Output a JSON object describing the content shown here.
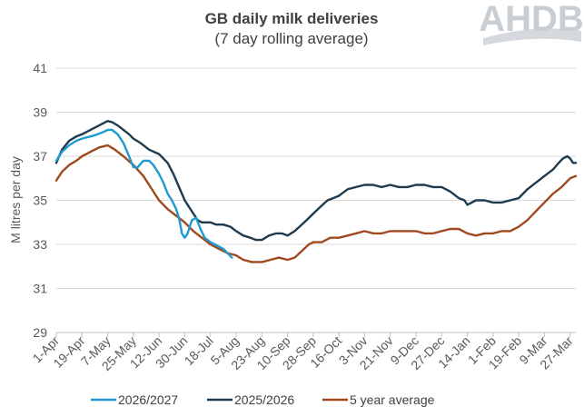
{
  "chart_data": {
    "type": "line",
    "title": "GB daily milk deliveries",
    "subtitle": "(7 day rolling average)",
    "ylabel": "M litres per day",
    "xlabel": "",
    "ylim": [
      29,
      41
    ],
    "yticks": [
      29,
      31,
      33,
      35,
      37,
      39,
      41
    ],
    "grid": "horizontal",
    "legend_position": "bottom",
    "logo_text": "AHDB",
    "categories": [
      "1-Apr",
      "19-Apr",
      "7-May",
      "25-May",
      "12-Jun",
      "30-Jun",
      "18-Jul",
      "5-Aug",
      "23-Aug",
      "10-Sep",
      "28-Sep",
      "16-Oct",
      "3-Nov",
      "21-Nov",
      "9-Dec",
      "27-Dec",
      "14-Jan",
      "1-Feb",
      "19-Feb",
      "9-Mar",
      "27-Mar"
    ],
    "series": [
      {
        "name": "2026/2027",
        "color": "#1f9bd1",
        "x": [
          "1-Apr",
          "5-Apr",
          "10-Apr",
          "15-Apr",
          "19-Apr",
          "25-Apr",
          "30-Apr",
          "4-May",
          "7-May",
          "10-May",
          "14-May",
          "18-May",
          "22-May",
          "25-May",
          "28-May",
          "1-Jun",
          "5-Jun",
          "8-Jun",
          "12-Jun",
          "15-Jun",
          "18-Jun",
          "21-Jun",
          "24-Jun",
          "26-Jun",
          "28-Jun",
          "30-Jun",
          "2-Jul",
          "5-Jul",
          "8-Jul",
          "11-Jul",
          "14-Jul",
          "18-Jul",
          "21-Jul",
          "24-Jul",
          "27-Jul",
          "30-Jul",
          "2-Aug"
        ],
        "values": [
          36.8,
          37.2,
          37.5,
          37.7,
          37.8,
          37.9,
          38.0,
          38.1,
          38.2,
          38.2,
          38.0,
          37.6,
          37.0,
          36.5,
          36.5,
          36.8,
          36.8,
          36.6,
          36.2,
          35.8,
          35.3,
          35.0,
          34.6,
          34.2,
          33.5,
          33.3,
          33.5,
          34.1,
          34.2,
          33.7,
          33.3,
          33.1,
          33.0,
          32.9,
          32.8,
          32.6,
          32.4
        ]
      },
      {
        "name": "2025/2026",
        "color": "#1f3a4d",
        "x": [
          "1-Apr",
          "5-Apr",
          "10-Apr",
          "15-Apr",
          "19-Apr",
          "25-Apr",
          "1-May",
          "4-May",
          "7-May",
          "10-May",
          "14-May",
          "18-May",
          "22-May",
          "25-May",
          "30-May",
          "5-Jun",
          "12-Jun",
          "18-Jun",
          "22-Jun",
          "26-Jun",
          "30-Jun",
          "3-Jul",
          "6-Jul",
          "9-Jul",
          "12-Jul",
          "15-Jul",
          "18-Jul",
          "22-Jul",
          "27-Jul",
          "1-Aug",
          "5-Aug",
          "10-Aug",
          "15-Aug",
          "19-Aug",
          "23-Aug",
          "28-Aug",
          "2-Sep",
          "6-Sep",
          "10-Sep",
          "15-Sep",
          "20-Sep",
          "25-Sep",
          "28-Sep",
          "3-Oct",
          "8-Oct",
          "12-Oct",
          "16-Oct",
          "22-Oct",
          "28-Oct",
          "3-Nov",
          "9-Nov",
          "15-Nov",
          "21-Nov",
          "27-Nov",
          "3-Dec",
          "9-Dec",
          "15-Dec",
          "21-Dec",
          "27-Dec",
          "2-Jan",
          "8-Jan",
          "12-Jan",
          "14-Jan",
          "20-Jan",
          "26-Jan",
          "1-Feb",
          "7-Feb",
          "13-Feb",
          "19-Feb",
          "25-Feb",
          "3-Mar",
          "9-Mar",
          "15-Mar",
          "19-Mar",
          "22-Mar",
          "25-Mar",
          "27-Mar",
          "29-Mar",
          "31-Mar"
        ],
        "values": [
          36.7,
          37.3,
          37.7,
          37.9,
          38.0,
          38.2,
          38.4,
          38.5,
          38.6,
          38.55,
          38.4,
          38.2,
          38.0,
          37.8,
          37.6,
          37.3,
          37.1,
          36.7,
          36.2,
          35.6,
          35.0,
          34.7,
          34.4,
          34.1,
          34.0,
          34.0,
          34.0,
          33.9,
          33.9,
          33.8,
          33.6,
          33.4,
          33.3,
          33.2,
          33.2,
          33.4,
          33.5,
          33.5,
          33.4,
          33.6,
          33.9,
          34.2,
          34.4,
          34.7,
          35.0,
          35.1,
          35.2,
          35.5,
          35.6,
          35.7,
          35.7,
          35.6,
          35.7,
          35.6,
          35.6,
          35.7,
          35.7,
          35.6,
          35.6,
          35.4,
          35.1,
          35.0,
          34.8,
          35.0,
          35.0,
          34.9,
          34.9,
          35.0,
          35.1,
          35.5,
          35.8,
          36.1,
          36.4,
          36.7,
          36.9,
          37.0,
          36.9,
          36.7,
          36.7
        ]
      },
      {
        "name": "5 year average",
        "color": "#a0491e",
        "x": [
          "1-Apr",
          "5-Apr",
          "10-Apr",
          "15-Apr",
          "19-Apr",
          "25-Apr",
          "1-May",
          "7-May",
          "12-May",
          "18-May",
          "25-May",
          "1-Jun",
          "6-Jun",
          "12-Jun",
          "18-Jun",
          "24-Jun",
          "30-Jun",
          "6-Jul",
          "12-Jul",
          "18-Jul",
          "24-Jul",
          "30-Jul",
          "5-Aug",
          "10-Aug",
          "16-Aug",
          "23-Aug",
          "29-Aug",
          "4-Sep",
          "10-Sep",
          "15-Sep",
          "20-Sep",
          "25-Sep",
          "28-Sep",
          "4-Oct",
          "10-Oct",
          "16-Oct",
          "22-Oct",
          "28-Oct",
          "3-Nov",
          "9-Nov",
          "15-Nov",
          "21-Nov",
          "27-Nov",
          "3-Dec",
          "9-Dec",
          "15-Dec",
          "21-Dec",
          "27-Dec",
          "2-Jan",
          "8-Jan",
          "14-Jan",
          "20-Jan",
          "26-Jan",
          "1-Feb",
          "7-Feb",
          "13-Feb",
          "19-Feb",
          "25-Feb",
          "3-Mar",
          "9-Mar",
          "15-Mar",
          "21-Mar",
          "27-Mar",
          "31-Mar"
        ],
        "values": [
          35.9,
          36.3,
          36.6,
          36.8,
          37.0,
          37.2,
          37.4,
          37.5,
          37.3,
          37.0,
          36.6,
          36.1,
          35.6,
          35.0,
          34.6,
          34.3,
          34.0,
          33.6,
          33.3,
          33.0,
          32.8,
          32.6,
          32.5,
          32.3,
          32.2,
          32.2,
          32.3,
          32.4,
          32.3,
          32.4,
          32.7,
          33.0,
          33.1,
          33.1,
          33.3,
          33.3,
          33.4,
          33.5,
          33.6,
          33.5,
          33.5,
          33.6,
          33.6,
          33.6,
          33.6,
          33.5,
          33.5,
          33.6,
          33.7,
          33.7,
          33.5,
          33.4,
          33.5,
          33.5,
          33.6,
          33.6,
          33.8,
          34.1,
          34.5,
          34.9,
          35.3,
          35.6,
          36.0,
          36.1
        ]
      }
    ]
  }
}
